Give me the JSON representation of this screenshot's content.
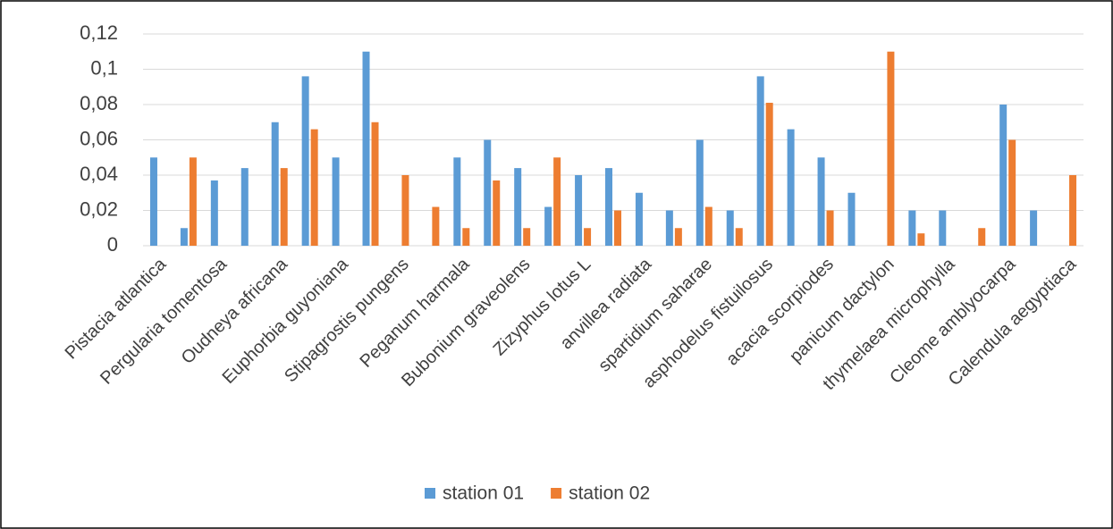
{
  "chart_data": {
    "type": "bar",
    "categories": [
      "Pistacia atlantica",
      null,
      "Pergularia tomentosa",
      null,
      "Oudneya africana",
      null,
      "Euphorbia guyoniana",
      null,
      "Stipagrostis pungens",
      null,
      "Peganum harmala",
      null,
      "Bubonium graveolens",
      null,
      "Zizyphus lotus L",
      null,
      "anvillea  radiata",
      null,
      "spartidium saharae",
      null,
      "asphodelus  fistuilosus",
      null,
      "acacia scorpiodes",
      null,
      "panicum dactylon",
      null,
      "thymelaea microphylla",
      null,
      "Cleome amblyocarpa",
      null,
      "Calendula aegyptiaca"
    ],
    "series": [
      {
        "name": "station 01",
        "color": "#5b9bd5",
        "values": [
          0.05,
          0.01,
          0.037,
          0.044,
          0.07,
          0.096,
          0.05,
          0.11,
          0,
          0,
          0.05,
          0.06,
          0.044,
          0.022,
          0.04,
          0.044,
          0.03,
          0.02,
          0.06,
          0.02,
          0.096,
          0.066,
          0.05,
          0.03,
          0,
          0.02,
          0.02,
          0,
          0.08,
          0.02,
          0
        ]
      },
      {
        "name": "station 02",
        "color": "#ed7d31",
        "values": [
          0,
          0.05,
          0,
          0,
          0.044,
          0.066,
          0,
          0.07,
          0.04,
          0.022,
          0.01,
          0.037,
          0.01,
          0.05,
          0.01,
          0.02,
          0,
          0.01,
          0.022,
          0.01,
          0.081,
          0,
          0.02,
          0,
          0.11,
          0.007,
          0,
          0.01,
          0.06,
          0,
          0.04
        ]
      }
    ],
    "ylim": [
      0,
      0.12
    ],
    "yticks": [
      0,
      {
        "value": 0.02,
        "label": "0,02"
      },
      {
        "value": 0.04,
        "label": "0,04"
      },
      {
        "value": 0.06,
        "label": "0,06"
      },
      {
        "value": 0.08,
        "label": "0,08"
      },
      {
        "value": 0.1,
        "label": "0,1"
      },
      {
        "value": 0.12,
        "label": "0,12"
      }
    ],
    "grid": true,
    "legend": "bottom"
  }
}
